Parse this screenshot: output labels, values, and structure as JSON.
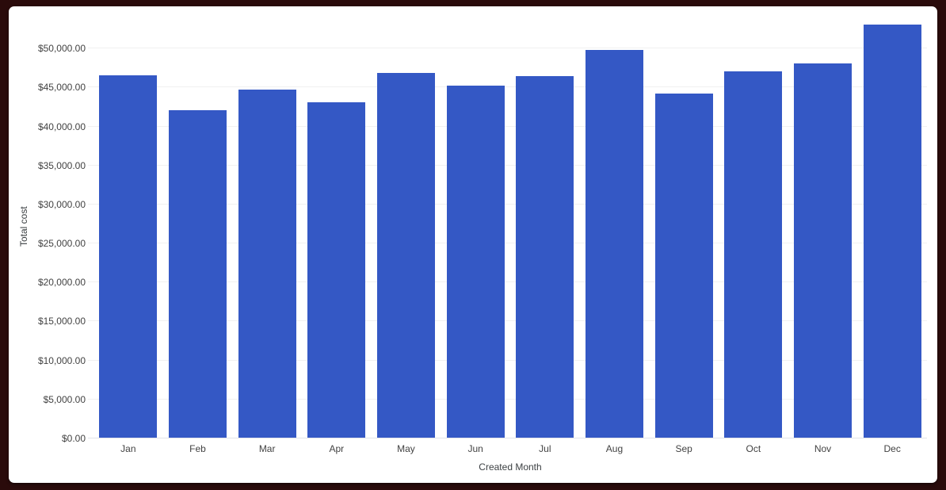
{
  "window": {
    "frame_color": "#2a0b0b",
    "card_color": "#ffffff"
  },
  "chart_data": {
    "type": "bar",
    "title": "",
    "xlabel": "Created Month",
    "ylabel": "Total cost",
    "categories": [
      "Jan",
      "Feb",
      "Mar",
      "Apr",
      "May",
      "Jun",
      "Jul",
      "Aug",
      "Sep",
      "Oct",
      "Nov",
      "Dec"
    ],
    "values": [
      46600,
      42100,
      44700,
      43100,
      46900,
      45300,
      46500,
      49800,
      44200,
      47100,
      48100,
      53100
    ],
    "series_name": "Total cost",
    "bar_color": "#3458c5",
    "ylim": [
      0,
      54400
    ],
    "yticks": [
      {
        "value": 0,
        "label": "$0.00"
      },
      {
        "value": 5000,
        "label": "$5,000.00"
      },
      {
        "value": 10000,
        "label": "$10,000.00"
      },
      {
        "value": 15000,
        "label": "$15,000.00"
      },
      {
        "value": 20000,
        "label": "$20,000.00"
      },
      {
        "value": 25000,
        "label": "$25,000.00"
      },
      {
        "value": 30000,
        "label": "$30,000.00"
      },
      {
        "value": 35000,
        "label": "$35,000.00"
      },
      {
        "value": 40000,
        "label": "$40,000.00"
      },
      {
        "value": 45000,
        "label": "$45,000.00"
      },
      {
        "value": 50000,
        "label": "$50,000.00"
      }
    ],
    "grid": true,
    "legend": false,
    "gridline_color": "#f1f1f1",
    "baseline_color": "#e2e4ea",
    "text_color": "#424242"
  }
}
